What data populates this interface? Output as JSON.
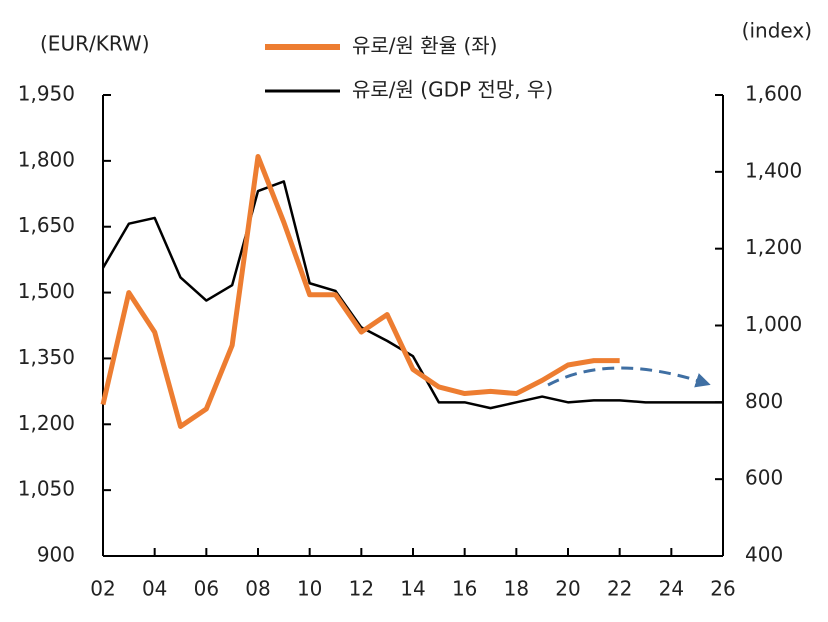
{
  "chart_data": {
    "type": "line",
    "y_label": "(EUR/KRW)",
    "y2_label": "(index)",
    "x": [
      2,
      3,
      4,
      5,
      6,
      7,
      8,
      9,
      10,
      11,
      12,
      13,
      14,
      15,
      16,
      17,
      18,
      19,
      20,
      21,
      22,
      23,
      24,
      25,
      26
    ],
    "xlim": [
      2,
      26
    ],
    "xticks": [
      {
        "value": 2,
        "label": "02"
      },
      {
        "value": 4,
        "label": "04"
      },
      {
        "value": 6,
        "label": "06"
      },
      {
        "value": 8,
        "label": "08"
      },
      10,
      12,
      14,
      16,
      18,
      20,
      22,
      24,
      26
    ],
    "ylim": [
      900,
      1950
    ],
    "yticks": [
      900,
      {
        "value": 1050,
        "label": "1,050"
      },
      {
        "value": 1200,
        "label": "1,200"
      },
      {
        "value": 1350,
        "label": "1,350"
      },
      {
        "value": 1500,
        "label": "1,500"
      },
      {
        "value": 1650,
        "label": "1,650"
      },
      {
        "value": 1800,
        "label": "1,800"
      },
      {
        "value": 1950,
        "label": "1,950"
      }
    ],
    "y2lim": [
      400,
      1600
    ],
    "y2ticks": [
      400,
      600,
      800,
      {
        "value": 1000,
        "label": "1,000"
      },
      {
        "value": 1200,
        "label": "1,200"
      },
      {
        "value": 1400,
        "label": "1,400"
      },
      {
        "value": 1600,
        "label": "1,600"
      }
    ],
    "series": [
      {
        "name": "유로/원 환율 (좌)",
        "color": "#ED7D31",
        "values": [
          1245,
          1500,
          1410,
          1195,
          1235,
          1380,
          1810,
          1660,
          1495,
          1495,
          1410,
          1450,
          1325,
          1285,
          1270,
          1275,
          1270,
          1300,
          1335,
          1345,
          1345,
          null,
          null,
          null,
          null
        ]
      },
      {
        "name": "유로/원 (GDP 전망, 우)",
        "color": "#000000",
        "axis": "y2",
        "values": [
          1150,
          1265,
          1280,
          1125,
          1065,
          1105,
          1350,
          1375,
          1110,
          1090,
          995,
          960,
          920,
          800,
          800,
          785,
          800,
          815,
          800,
          805,
          805,
          800,
          800,
          800,
          800
        ]
      }
    ]
  }
}
